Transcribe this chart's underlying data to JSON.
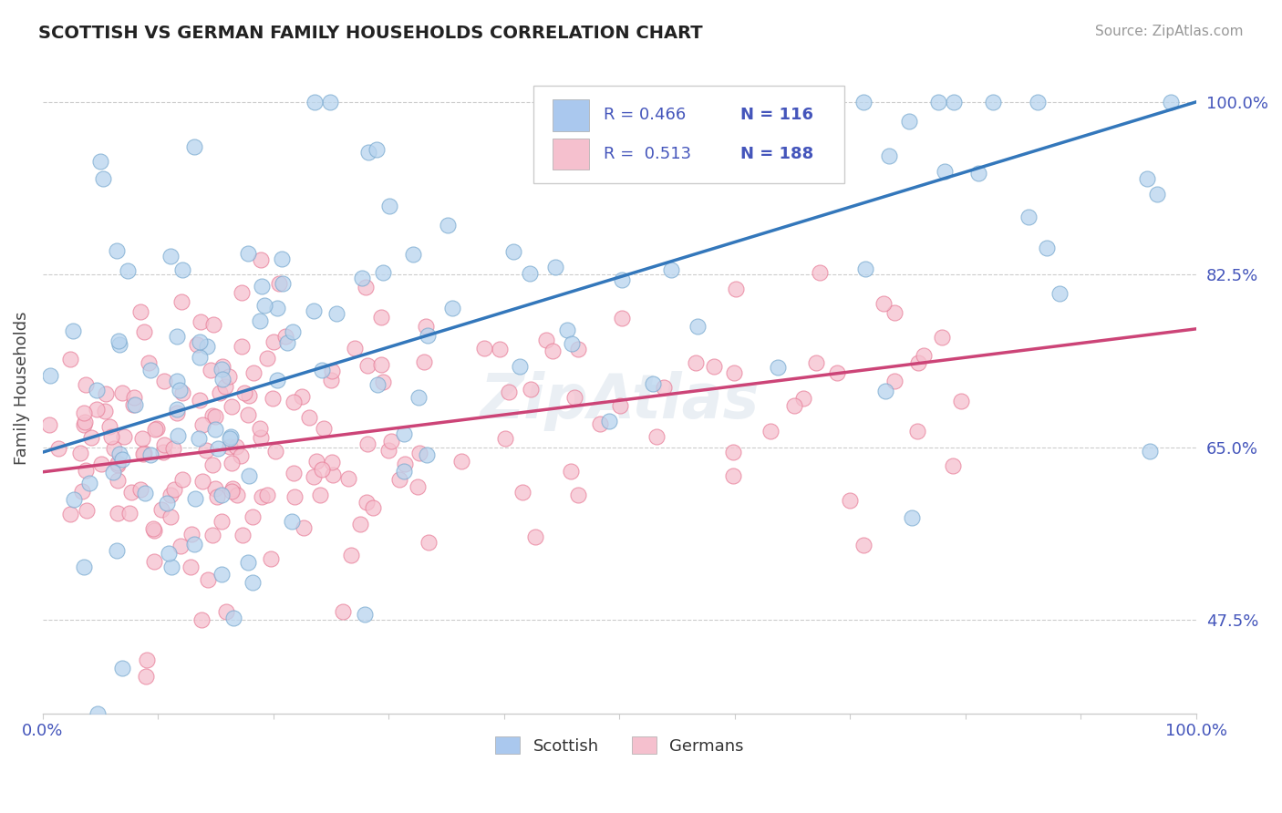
{
  "title": "SCOTTISH VS GERMAN FAMILY HOUSEHOLDS CORRELATION CHART",
  "source": "Source: ZipAtlas.com",
  "ylabel": "Family Households",
  "xlim": [
    0.0,
    1.0
  ],
  "ylim": [
    0.38,
    1.04
  ],
  "yticks": [
    0.475,
    0.65,
    0.825,
    1.0
  ],
  "ytick_labels": [
    "47.5%",
    "65.0%",
    "82.5%",
    "100.0%"
  ],
  "scottish_color": "#b8d4ee",
  "scottish_edge_color": "#7aaad0",
  "german_color": "#f5c0ce",
  "german_edge_color": "#e8809a",
  "trend_blue": "#3377bb",
  "trend_pink": "#cc4477",
  "legend_blue_fill": "#aac8ee",
  "legend_pink_fill": "#f5c0ce",
  "R_scottish": 0.466,
  "N_scottish": 116,
  "R_german": 0.513,
  "N_german": 188,
  "background_color": "#ffffff",
  "grid_color": "#cccccc",
  "tick_color": "#4455bb",
  "title_color": "#222222",
  "watermark": "ZipAtlas",
  "watermark_color": "#bbccdd",
  "sc_intercept": 0.645,
  "sc_slope": 0.355,
  "ge_intercept": 0.625,
  "ge_slope": 0.145
}
